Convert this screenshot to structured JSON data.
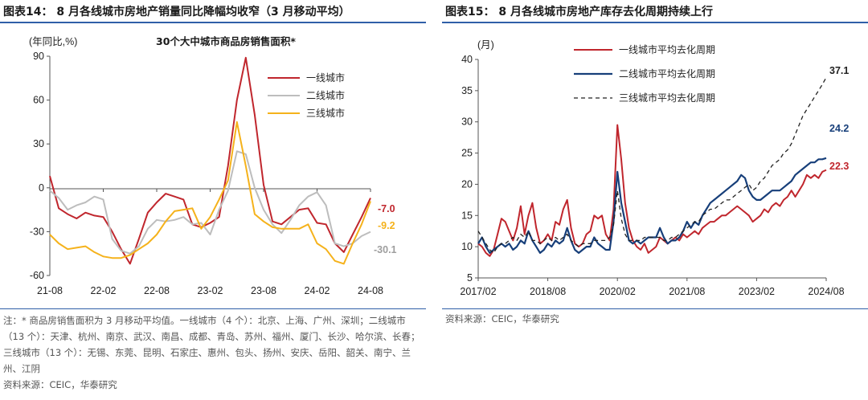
{
  "left": {
    "title": "图表14：  8 月各线城市房地产销量同比降幅均收窄（3 月移动平均）",
    "note": "注：* 商品房销售面积为 3 月移动平均值。一线城市（4 个）：北京、上海、广州、深圳；二线城市（13 个）：天津、杭州、南京、武汉、南昌、成都、青岛、苏州、福州、厦门、长沙、哈尔滨、长春；三线城市（13 个）：无锡、东莞、昆明、石家庄、惠州、包头、扬州、安庆、岳阳、韶关、南宁、兰州、江阴",
    "source": "资料来源：CEIC，华泰研究",
    "colors": {
      "tier1": "#c0262d",
      "tier2": "#bdbdbd",
      "tier3": "#f5b21b"
    },
    "end_label_colors": [
      "#c0262d",
      "#f5b21b",
      "#9e9e9e"
    ]
  },
  "right": {
    "title": "图表15：  8 月各线城市房地产库存去化周期持续上行",
    "source": "资料来源：CEIC，华泰研究",
    "colors": {
      "tier1": "#c0262d",
      "tier2": "#173f7a",
      "tier3": "#222222"
    },
    "end_label_colors": [
      "#222222",
      "#173f7a",
      "#c0262d"
    ]
  },
  "chart_data": [
    {
      "type": "line",
      "title": "30个大中城市商品房销售面积*",
      "ylabel": "(年同比,%)",
      "ylim": [
        -60,
        90
      ],
      "yticks": [
        -60,
        -30,
        0,
        30,
        60,
        90
      ],
      "x_tick_labels": [
        "21-08",
        "22-02",
        "22-08",
        "23-02",
        "23-08",
        "24-02",
        "24-08"
      ],
      "x_tick_index": [
        0,
        6,
        12,
        18,
        24,
        30,
        36
      ],
      "n_points": 37,
      "series": [
        {
          "name": "一线城市",
          "values": [
            8,
            -14,
            -18,
            -21,
            -17,
            -19,
            -20,
            -30,
            -42,
            -52,
            -35,
            -17,
            -10,
            -4,
            -6,
            -8,
            -25,
            -27,
            -24,
            -20,
            15,
            60,
            89,
            50,
            2,
            -23,
            -25,
            -20,
            -15,
            -14,
            -24,
            -25,
            -38,
            -44,
            -32,
            -20,
            -7
          ]
        },
        {
          "name": "二线城市",
          "values": [
            -2,
            -7,
            -15,
            -12,
            -10,
            -6,
            -8,
            -35,
            -43,
            -45,
            -40,
            -28,
            -22,
            -23,
            -22,
            -20,
            -25,
            -24,
            -32,
            -15,
            -2,
            25,
            23,
            0,
            -15,
            -25,
            -31,
            -22,
            -12,
            -6,
            -3,
            -12,
            -38,
            -40,
            -38,
            -33,
            -30.1
          ]
        },
        {
          "name": "三线城市",
          "values": [
            -32,
            -38,
            -42,
            -41,
            -40,
            -44,
            -47,
            -48,
            -48,
            -46,
            -42,
            -38,
            -32,
            -23,
            -16,
            -15,
            -14,
            -28,
            -20,
            -8,
            5,
            45,
            15,
            -18,
            -23,
            -27,
            -28,
            -28,
            -28,
            -25,
            -38,
            -42,
            -50,
            -52,
            -38,
            -25,
            -9.2
          ]
        }
      ],
      "end_labels": [
        "-7.0",
        "-9.2",
        "-30.1"
      ]
    },
    {
      "type": "line",
      "title": "",
      "ylabel": "(月)",
      "ylim": [
        5,
        40
      ],
      "yticks": [
        5,
        10,
        15,
        20,
        25,
        30,
        35,
        40
      ],
      "x_tick_labels": [
        "2017/02",
        "2018/08",
        "2020/02",
        "2021/08",
        "2023/02",
        "2024/08"
      ],
      "x_tick_index": [
        0,
        18,
        36,
        54,
        72,
        90
      ],
      "n_points": 91,
      "series": [
        {
          "name": "一线城市平均去化周期",
          "values": [
            10.5,
            10,
            9,
            8.5,
            9.5,
            12,
            14.5,
            14,
            12.5,
            11,
            13,
            16.5,
            12,
            15,
            17,
            13,
            10.5,
            11,
            12,
            11,
            14,
            13.5,
            16,
            17.5,
            13,
            10.5,
            10,
            10.5,
            12,
            12.5,
            15,
            14.5,
            15,
            12,
            11,
            16,
            29.5,
            24,
            17,
            13,
            11,
            10,
            9.5,
            10.5,
            9,
            9.5,
            10,
            11.5,
            11,
            10.5,
            11,
            11.5,
            11,
            12,
            11.5,
            12,
            12.5,
            12,
            13,
            13.5,
            14,
            14,
            14.5,
            15,
            15,
            15.5,
            16,
            16.5,
            16,
            15.5,
            15,
            14,
            14.5,
            15,
            16,
            15.5,
            16.5,
            17,
            16.5,
            17.5,
            18,
            19,
            18,
            19,
            20,
            21.5,
            21,
            21.5,
            21,
            22,
            22.3
          ]
        },
        {
          "name": "二线城市平均去化周期",
          "values": [
            10.5,
            11.5,
            10,
            9,
            9.5,
            10,
            10.5,
            10,
            10.5,
            9.5,
            10,
            11,
            10.5,
            12.5,
            11,
            10,
            9,
            9.5,
            10.5,
            10,
            11,
            10.5,
            11,
            13,
            11,
            9.5,
            9,
            9.5,
            10,
            10,
            11.5,
            10.5,
            10,
            9.5,
            9.5,
            14,
            22,
            17,
            14,
            11,
            10.5,
            11,
            10.5,
            11,
            11.5,
            11.5,
            11.5,
            13,
            11.5,
            10.5,
            11,
            11,
            11.5,
            12.5,
            14,
            13,
            14,
            13.5,
            15,
            16,
            17,
            17.5,
            18,
            18.5,
            19,
            19.5,
            20,
            20.5,
            21.5,
            21,
            19,
            18,
            17.5,
            17.5,
            18,
            18.5,
            19,
            19,
            19,
            19.5,
            20,
            20.5,
            21.5,
            22,
            22.5,
            23,
            23.5,
            23.5,
            24,
            24,
            24.2
          ]
        },
        {
          "name": "三线城市平均去化周期",
          "values": [
            12.5,
            11.5,
            10.5,
            9.5,
            9,
            10,
            10.5,
            10.5,
            11,
            11.5,
            11,
            12,
            11.5,
            12.5,
            11,
            11,
            10.5,
            11,
            11.5,
            11,
            11.5,
            11,
            11.5,
            12,
            11,
            10.5,
            10,
            10.5,
            10.5,
            10.5,
            11,
            11,
            11,
            11,
            11.5,
            13.5,
            19,
            14.5,
            12,
            11,
            11,
            11,
            11,
            11.5,
            11.5,
            11.5,
            11.5,
            11.5,
            11,
            11,
            11.5,
            11.5,
            12,
            12.5,
            13,
            13.5,
            14,
            14,
            15,
            15.5,
            16,
            16,
            16.5,
            17,
            17.5,
            17.5,
            18,
            18.5,
            19,
            19.5,
            20,
            19,
            19.5,
            20.5,
            21,
            22,
            23,
            23.5,
            24,
            25,
            25.5,
            26.5,
            28,
            29.5,
            31,
            32,
            33,
            34,
            35,
            36,
            37.1
          ]
        }
      ],
      "end_labels": [
        "37.1",
        "24.2",
        "22.3"
      ]
    }
  ]
}
